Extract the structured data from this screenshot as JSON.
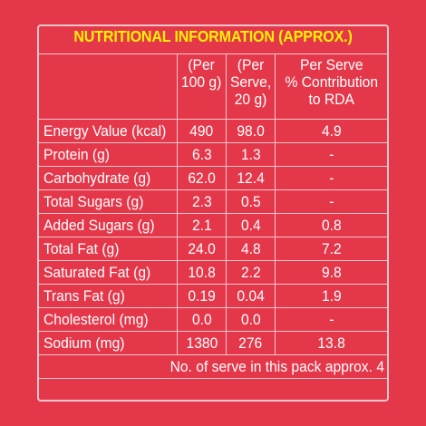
{
  "title": "NUTRITIONAL INFORMATION (APPROX.)",
  "columns": [
    "(Per 100 g)",
    "(Per Serve, 20 g)",
    "Per Serve % Contribution to RDA"
  ],
  "header_lines": {
    "c1": [
      "(Per",
      "100 g)"
    ],
    "c2": [
      "(Per",
      "Serve,",
      "20 g)"
    ],
    "c3": [
      "Per Serve",
      "% Contribution",
      "to RDA"
    ]
  },
  "rows": [
    {
      "label": "Energy Value (kcal)",
      "per100": "490",
      "perServe": "98.0",
      "rda": "4.9"
    },
    {
      "label": "Protein (g)",
      "per100": "6.3",
      "perServe": "1.3",
      "rda": "-"
    },
    {
      "label": "Carbohydrate (g)",
      "per100": "62.0",
      "perServe": "12.4",
      "rda": "-"
    },
    {
      "label": "Total Sugars (g)",
      "per100": "2.3",
      "perServe": "0.5",
      "rda": "-"
    },
    {
      "label": "Added Sugars (g)",
      "per100": "2.1",
      "perServe": "0.4",
      "rda": "0.8"
    },
    {
      "label": "Total Fat (g)",
      "per100": "24.0",
      "perServe": "4.8",
      "rda": "7.2"
    },
    {
      "label": "Saturated Fat (g)",
      "per100": "10.8",
      "perServe": "2.2",
      "rda": "9.8"
    },
    {
      "label": "Trans Fat (g)",
      "per100": "0.19",
      "perServe": "0.04",
      "rda": "1.9"
    },
    {
      "label": "Cholesterol (mg)",
      "per100": "0.0",
      "perServe": "0.0",
      "rda": "-"
    },
    {
      "label": "Sodium (mg)",
      "per100": "1380",
      "perServe": "276",
      "rda": "13.8"
    }
  ],
  "footer": "No. of serve in this pack approx. 4",
  "colors": {
    "background": "#e5374a",
    "title": "#fff200",
    "text": "#ffffff",
    "rule": "#f5c7cc"
  }
}
